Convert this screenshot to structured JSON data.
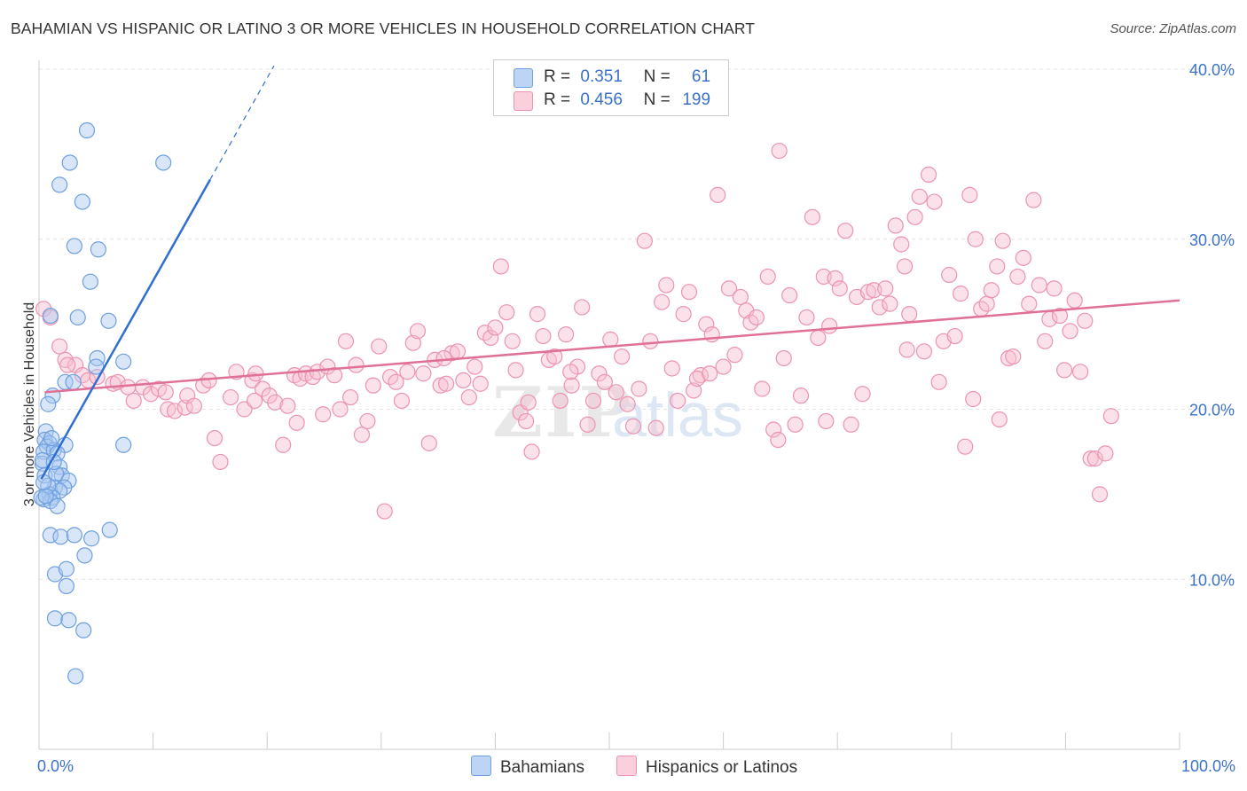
{
  "header": {
    "title": "BAHAMIAN VS HISPANIC OR LATINO 3 OR MORE VEHICLES IN HOUSEHOLD CORRELATION CHART",
    "source": "Source: ZipAtlas.com"
  },
  "legend_top": {
    "rows": [
      {
        "r_label": "R =",
        "r_value": "0.351",
        "n_label": "N =",
        "n_value": "61"
      },
      {
        "r_label": "R =",
        "r_value": "0.456",
        "n_label": "N =",
        "n_value": "199"
      }
    ]
  },
  "legend_bottom": {
    "items": [
      {
        "label": "Bahamians"
      },
      {
        "label": "Hispanics or Latinos"
      }
    ]
  },
  "watermark": {
    "zip": "ZIP",
    "atlas": "atlas"
  },
  "colors": {
    "blue_fill": "#a9c8ef",
    "blue_stroke": "#6e9fe0",
    "blue_line": "#2f6fd0",
    "pink_fill": "#f6bfd0",
    "pink_stroke": "#ec93b0",
    "pink_line": "#e07098",
    "axis_label": "#3b72c8",
    "grid": "#e4e4e4"
  },
  "chart_data": {
    "type": "scatter",
    "title": "BAHAMIAN VS HISPANIC OR LATINO 3 OR MORE VEHICLES IN HOUSEHOLD CORRELATION CHART",
    "xlabel": "",
    "ylabel": "3 or more Vehicles in Household",
    "xlim": [
      0,
      100
    ],
    "ylim": [
      0,
      40
    ],
    "x_tick_labels": [
      "0.0%",
      "100.0%"
    ],
    "y_ticks": [
      10,
      20,
      30,
      40
    ],
    "y_tick_labels": [
      "10.0%",
      "20.0%",
      "30.0%",
      "40.0%"
    ],
    "series": [
      {
        "name": "Bahamians",
        "r": 0.351,
        "n": 61,
        "trend": {
          "x0": 0.2,
          "y0": 15.9,
          "x1": 15.0,
          "y1": 33.5,
          "dash_to_x": 20.6,
          "dash_to_y": 40.2
        },
        "points": [
          [
            4.2,
            36.4
          ],
          [
            2.7,
            34.5
          ],
          [
            10.9,
            34.5
          ],
          [
            1.8,
            33.2
          ],
          [
            3.8,
            32.2
          ],
          [
            3.1,
            29.6
          ],
          [
            5.2,
            29.4
          ],
          [
            4.5,
            27.5
          ],
          [
            1.0,
            25.5
          ],
          [
            3.4,
            25.4
          ],
          [
            6.1,
            25.2
          ],
          [
            5.1,
            23.0
          ],
          [
            7.4,
            22.8
          ],
          [
            5.0,
            22.5
          ],
          [
            2.3,
            21.6
          ],
          [
            3.0,
            21.6
          ],
          [
            1.2,
            20.8
          ],
          [
            0.8,
            20.3
          ],
          [
            0.6,
            18.7
          ],
          [
            0.5,
            18.2
          ],
          [
            0.9,
            18.0
          ],
          [
            0.7,
            17.8
          ],
          [
            2.3,
            17.9
          ],
          [
            7.4,
            17.9
          ],
          [
            0.4,
            17.5
          ],
          [
            1.3,
            17.6
          ],
          [
            1.6,
            17.4
          ],
          [
            0.3,
            16.8
          ],
          [
            1.8,
            16.6
          ],
          [
            0.5,
            16.1
          ],
          [
            2.0,
            16.1
          ],
          [
            1.5,
            16.2
          ],
          [
            2.6,
            15.8
          ],
          [
            1.4,
            15.4
          ],
          [
            2.2,
            15.4
          ],
          [
            1.8,
            15.2
          ],
          [
            0.9,
            15.0
          ],
          [
            1.2,
            14.8
          ],
          [
            0.4,
            14.7
          ],
          [
            1.0,
            14.6
          ],
          [
            1.6,
            14.3
          ],
          [
            0.2,
            14.8
          ],
          [
            6.2,
            12.9
          ],
          [
            1.0,
            12.6
          ],
          [
            1.9,
            12.5
          ],
          [
            3.1,
            12.6
          ],
          [
            4.6,
            12.4
          ],
          [
            4.0,
            11.4
          ],
          [
            1.4,
            10.3
          ],
          [
            2.4,
            10.6
          ],
          [
            2.4,
            9.6
          ],
          [
            1.4,
            7.7
          ],
          [
            2.6,
            7.6
          ],
          [
            3.9,
            7.0
          ],
          [
            3.2,
            4.3
          ],
          [
            0.3,
            17.0
          ],
          [
            0.8,
            15.5
          ],
          [
            1.1,
            18.3
          ],
          [
            0.6,
            14.9
          ],
          [
            1.3,
            16.9
          ],
          [
            0.4,
            15.7
          ]
        ]
      },
      {
        "name": "Hispanics or Latinos",
        "r": 0.456,
        "n": 199,
        "trend": {
          "x0": 0.5,
          "y0": 21.0,
          "x1": 100.0,
          "y1": 26.4
        },
        "points": [
          [
            0.4,
            25.9
          ],
          [
            1.0,
            25.4
          ],
          [
            1.8,
            23.7
          ],
          [
            2.3,
            22.9
          ],
          [
            3.2,
            22.6
          ],
          [
            2.5,
            22.6
          ],
          [
            3.8,
            22.0
          ],
          [
            4.3,
            21.7
          ],
          [
            5.1,
            21.9
          ],
          [
            6.5,
            21.5
          ],
          [
            6.9,
            21.6
          ],
          [
            7.8,
            21.3
          ],
          [
            8.3,
            20.5
          ],
          [
            9.1,
            21.3
          ],
          [
            9.8,
            20.9
          ],
          [
            10.5,
            21.2
          ],
          [
            11.1,
            21.0
          ],
          [
            11.3,
            20.0
          ],
          [
            11.9,
            19.9
          ],
          [
            12.8,
            20.1
          ],
          [
            13.0,
            20.8
          ],
          [
            13.6,
            20.2
          ],
          [
            14.4,
            21.4
          ],
          [
            14.9,
            21.7
          ],
          [
            15.4,
            18.3
          ],
          [
            15.9,
            16.9
          ],
          [
            16.8,
            20.7
          ],
          [
            17.3,
            22.2
          ],
          [
            18.0,
            20.0
          ],
          [
            18.7,
            21.7
          ],
          [
            19.0,
            22.1
          ],
          [
            19.6,
            21.2
          ],
          [
            20.2,
            20.8
          ],
          [
            20.7,
            20.4
          ],
          [
            21.4,
            17.9
          ],
          [
            21.8,
            20.2
          ],
          [
            22.4,
            22.0
          ],
          [
            22.9,
            21.8
          ],
          [
            23.4,
            22.1
          ],
          [
            24.0,
            21.9
          ],
          [
            24.4,
            22.2
          ],
          [
            24.9,
            19.7
          ],
          [
            25.3,
            22.5
          ],
          [
            25.9,
            22.0
          ],
          [
            26.4,
            20.0
          ],
          [
            26.9,
            24.0
          ],
          [
            27.3,
            20.7
          ],
          [
            27.8,
            22.6
          ],
          [
            28.3,
            18.5
          ],
          [
            28.8,
            19.3
          ],
          [
            29.3,
            21.4
          ],
          [
            29.8,
            23.7
          ],
          [
            30.3,
            14.0
          ],
          [
            30.8,
            21.9
          ],
          [
            31.3,
            21.6
          ],
          [
            31.8,
            20.5
          ],
          [
            32.3,
            22.2
          ],
          [
            32.8,
            23.9
          ],
          [
            33.2,
            24.6
          ],
          [
            33.7,
            22.1
          ],
          [
            34.2,
            18.0
          ],
          [
            34.7,
            22.9
          ],
          [
            35.2,
            21.4
          ],
          [
            35.7,
            21.5
          ],
          [
            36.2,
            23.3
          ],
          [
            36.7,
            23.4
          ],
          [
            37.2,
            21.7
          ],
          [
            37.7,
            20.7
          ],
          [
            38.2,
            22.5
          ],
          [
            38.7,
            21.5
          ],
          [
            39.1,
            24.5
          ],
          [
            39.6,
            24.2
          ],
          [
            40.0,
            24.8
          ],
          [
            40.5,
            28.4
          ],
          [
            41.0,
            25.7
          ],
          [
            41.5,
            24.0
          ],
          [
            41.8,
            22.3
          ],
          [
            42.2,
            19.8
          ],
          [
            42.7,
            19.3
          ],
          [
            43.2,
            17.5
          ],
          [
            43.7,
            25.6
          ],
          [
            44.2,
            24.3
          ],
          [
            44.7,
            22.9
          ],
          [
            45.2,
            23.1
          ],
          [
            45.7,
            20.5
          ],
          [
            46.2,
            24.4
          ],
          [
            46.7,
            21.4
          ],
          [
            47.2,
            22.5
          ],
          [
            47.6,
            26.0
          ],
          [
            48.1,
            19.1
          ],
          [
            48.6,
            20.5
          ],
          [
            49.1,
            22.1
          ],
          [
            49.6,
            21.6
          ],
          [
            50.1,
            24.1
          ],
          [
            50.6,
            21.0
          ],
          [
            51.1,
            23.1
          ],
          [
            51.6,
            20.3
          ],
          [
            52.1,
            19.0
          ],
          [
            52.6,
            21.2
          ],
          [
            53.1,
            29.9
          ],
          [
            53.6,
            24.0
          ],
          [
            54.1,
            18.9
          ],
          [
            54.6,
            26.3
          ],
          [
            55.0,
            27.3
          ],
          [
            55.5,
            22.4
          ],
          [
            56.0,
            20.5
          ],
          [
            56.5,
            25.6
          ],
          [
            57.0,
            26.9
          ],
          [
            57.4,
            21.1
          ],
          [
            58.0,
            22.0
          ],
          [
            58.5,
            25.0
          ],
          [
            59.0,
            24.4
          ],
          [
            59.5,
            32.6
          ],
          [
            60.0,
            22.5
          ],
          [
            60.5,
            27.1
          ],
          [
            61.0,
            23.2
          ],
          [
            61.5,
            26.6
          ],
          [
            62.0,
            25.8
          ],
          [
            62.4,
            25.1
          ],
          [
            62.9,
            25.4
          ],
          [
            63.4,
            21.2
          ],
          [
            63.9,
            27.8
          ],
          [
            64.4,
            18.8
          ],
          [
            64.8,
            18.2
          ],
          [
            65.3,
            23.0
          ],
          [
            65.8,
            26.7
          ],
          [
            66.3,
            19.1
          ],
          [
            66.8,
            20.8
          ],
          [
            67.3,
            25.4
          ],
          [
            67.8,
            31.3
          ],
          [
            68.3,
            24.2
          ],
          [
            68.8,
            27.8
          ],
          [
            69.3,
            24.9
          ],
          [
            69.8,
            27.7
          ],
          [
            70.2,
            27.1
          ],
          [
            70.7,
            30.5
          ],
          [
            71.2,
            19.1
          ],
          [
            71.7,
            26.6
          ],
          [
            72.2,
            20.9
          ],
          [
            72.7,
            26.9
          ],
          [
            73.2,
            27.0
          ],
          [
            73.7,
            26.0
          ],
          [
            74.2,
            27.1
          ],
          [
            74.6,
            26.2
          ],
          [
            75.1,
            30.8
          ],
          [
            75.6,
            29.7
          ],
          [
            75.9,
            28.4
          ],
          [
            76.3,
            25.6
          ],
          [
            76.8,
            31.3
          ],
          [
            77.2,
            32.5
          ],
          [
            77.6,
            23.4
          ],
          [
            78.0,
            33.8
          ],
          [
            78.5,
            32.2
          ],
          [
            78.9,
            21.6
          ],
          [
            79.3,
            24.0
          ],
          [
            79.8,
            27.9
          ],
          [
            80.3,
            24.3
          ],
          [
            80.8,
            26.8
          ],
          [
            81.2,
            17.8
          ],
          [
            81.6,
            32.6
          ],
          [
            82.1,
            30.0
          ],
          [
            82.6,
            25.9
          ],
          [
            83.1,
            26.2
          ],
          [
            83.5,
            27.0
          ],
          [
            84.0,
            28.4
          ],
          [
            84.5,
            29.9
          ],
          [
            85.0,
            23.0
          ],
          [
            85.4,
            23.1
          ],
          [
            85.8,
            27.8
          ],
          [
            86.3,
            28.9
          ],
          [
            86.8,
            26.2
          ],
          [
            87.2,
            32.3
          ],
          [
            87.7,
            27.3
          ],
          [
            88.2,
            24.0
          ],
          [
            88.6,
            25.3
          ],
          [
            89.0,
            27.1
          ],
          [
            89.5,
            25.5
          ],
          [
            89.9,
            22.3
          ],
          [
            90.4,
            24.6
          ],
          [
            90.8,
            26.4
          ],
          [
            91.3,
            22.2
          ],
          [
            91.7,
            25.2
          ],
          [
            92.2,
            17.1
          ],
          [
            92.6,
            17.1
          ],
          [
            93.0,
            15.0
          ],
          [
            93.5,
            17.4
          ],
          [
            94.0,
            19.6
          ],
          [
            64.9,
            35.2
          ],
          [
            76.1,
            23.5
          ],
          [
            46.6,
            22.2
          ],
          [
            18.9,
            20.5
          ],
          [
            35.5,
            23.0
          ],
          [
            57.7,
            21.8
          ],
          [
            69.0,
            19.3
          ],
          [
            84.2,
            19.4
          ],
          [
            22.6,
            19.2
          ],
          [
            58.8,
            22.1
          ],
          [
            42.9,
            20.4
          ],
          [
            81.9,
            20.6
          ]
        ]
      }
    ]
  }
}
